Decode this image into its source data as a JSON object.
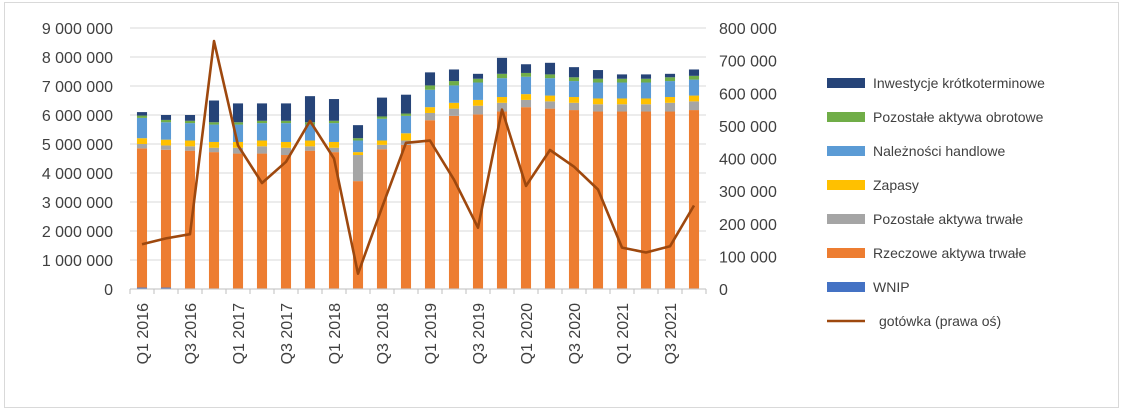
{
  "chart_data": {
    "type": "bar",
    "stacked": true,
    "categories": [
      "Q1 2016",
      "Q2 2016",
      "Q3 2016",
      "Q4 2016",
      "Q1 2017",
      "Q2 2017",
      "Q3 2017",
      "Q4 2017",
      "Q1 2018",
      "Q2 2018",
      "Q3 2018",
      "Q4 2018",
      "Q1 2019",
      "Q2 2019",
      "Q3 2019",
      "Q4 2019",
      "Q1 2020",
      "Q2 2020",
      "Q3 2020",
      "Q4 2020",
      "Q1 2021",
      "Q2 2021",
      "Q3 2021",
      "Q4 2021"
    ],
    "x_tick_labels": [
      "Q1 2016",
      "Q3 2016",
      "Q1 2017",
      "Q3 2017",
      "Q1 2018",
      "Q3 2018",
      "Q1 2019",
      "Q3 2019",
      "Q1 2020",
      "Q3 2020",
      "Q1 2021",
      "Q3 2021"
    ],
    "ylim_left": [
      0,
      9000000
    ],
    "ylim_right": [
      0,
      800000
    ],
    "yticks_left": [
      "0",
      "1 000 000",
      "2 000 000",
      "3 000 000",
      "4 000 000",
      "5 000 000",
      "6 000 000",
      "7 000 000",
      "8 000 000",
      "9 000 000"
    ],
    "yticks_right": [
      "0",
      "100 000",
      "200 000",
      "300 000",
      "400 000",
      "500 000",
      "600 000",
      "700 000",
      "800 000"
    ],
    "grid": true,
    "legend_position": "right",
    "series": [
      {
        "name": "WNIP",
        "color": "#4472c4",
        "axis": "left",
        "values": [
          50000,
          50000,
          20000,
          20000,
          20000,
          20000,
          20000,
          20000,
          20000,
          20000,
          20000,
          20000,
          20000,
          20000,
          20000,
          20000,
          20000,
          20000,
          20000,
          20000,
          20000,
          20000,
          20000,
          20000
        ]
      },
      {
        "name": "Rzeczowe aktywa trwałe",
        "color": "#ed7d31",
        "axis": "left",
        "values": [
          4800000,
          4750000,
          4750000,
          4700000,
          4650000,
          4650000,
          4600000,
          4750000,
          4700000,
          3700000,
          4800000,
          4950000,
          5800000,
          5950000,
          6000000,
          6100000,
          6250000,
          6200000,
          6150000,
          6100000,
          6100000,
          6100000,
          6100000,
          6150000
        ]
      },
      {
        "name": "Pozostałe aktywa trwałe",
        "color": "#a5a5a5",
        "axis": "left",
        "values": [
          150000,
          150000,
          150000,
          150000,
          200000,
          250000,
          250000,
          150000,
          150000,
          900000,
          150000,
          150000,
          250000,
          250000,
          300000,
          300000,
          250000,
          250000,
          250000,
          250000,
          250000,
          250000,
          300000,
          300000
        ]
      },
      {
        "name": "Zapasy",
        "color": "#ffc000",
        "axis": "left",
        "values": [
          200000,
          200000,
          200000,
          200000,
          200000,
          200000,
          200000,
          200000,
          200000,
          100000,
          150000,
          250000,
          200000,
          200000,
          200000,
          200000,
          200000,
          200000,
          200000,
          200000,
          200000,
          200000,
          200000,
          200000
        ]
      },
      {
        "name": "Należności handlowe",
        "color": "#5b9bd5",
        "axis": "left",
        "values": [
          700000,
          600000,
          600000,
          600000,
          600000,
          600000,
          650000,
          550000,
          650000,
          400000,
          750000,
          600000,
          600000,
          600000,
          600000,
          650000,
          600000,
          600000,
          550000,
          550000,
          550000,
          550000,
          550000,
          550000
        ]
      },
      {
        "name": "Pozostałe aktywa obrotowe",
        "color": "#70ad47",
        "axis": "left",
        "values": [
          80000,
          80000,
          80000,
          80000,
          80000,
          80000,
          80000,
          80000,
          80000,
          80000,
          80000,
          80000,
          150000,
          150000,
          130000,
          150000,
          130000,
          130000,
          130000,
          130000,
          130000,
          130000,
          130000,
          130000
        ]
      },
      {
        "name": "Inwestycje krótkoterminowe",
        "color": "#264478",
        "axis": "left",
        "values": [
          120000,
          170000,
          200000,
          750000,
          650000,
          600000,
          600000,
          900000,
          750000,
          450000,
          650000,
          650000,
          450000,
          400000,
          170000,
          550000,
          300000,
          400000,
          350000,
          300000,
          150000,
          150000,
          120000,
          220000
        ]
      },
      {
        "name": "gotówka (prawa oś)",
        "color": "#9e480e",
        "axis": "right",
        "type": "line",
        "values": [
          137000,
          155000,
          168000,
          760000,
          440000,
          325000,
          390000,
          515000,
          400000,
          47000,
          250000,
          448000,
          455000,
          335000,
          188000,
          550000,
          316000,
          426000,
          375000,
          305000,
          127000,
          112000,
          131000,
          256000
        ]
      }
    ]
  }
}
